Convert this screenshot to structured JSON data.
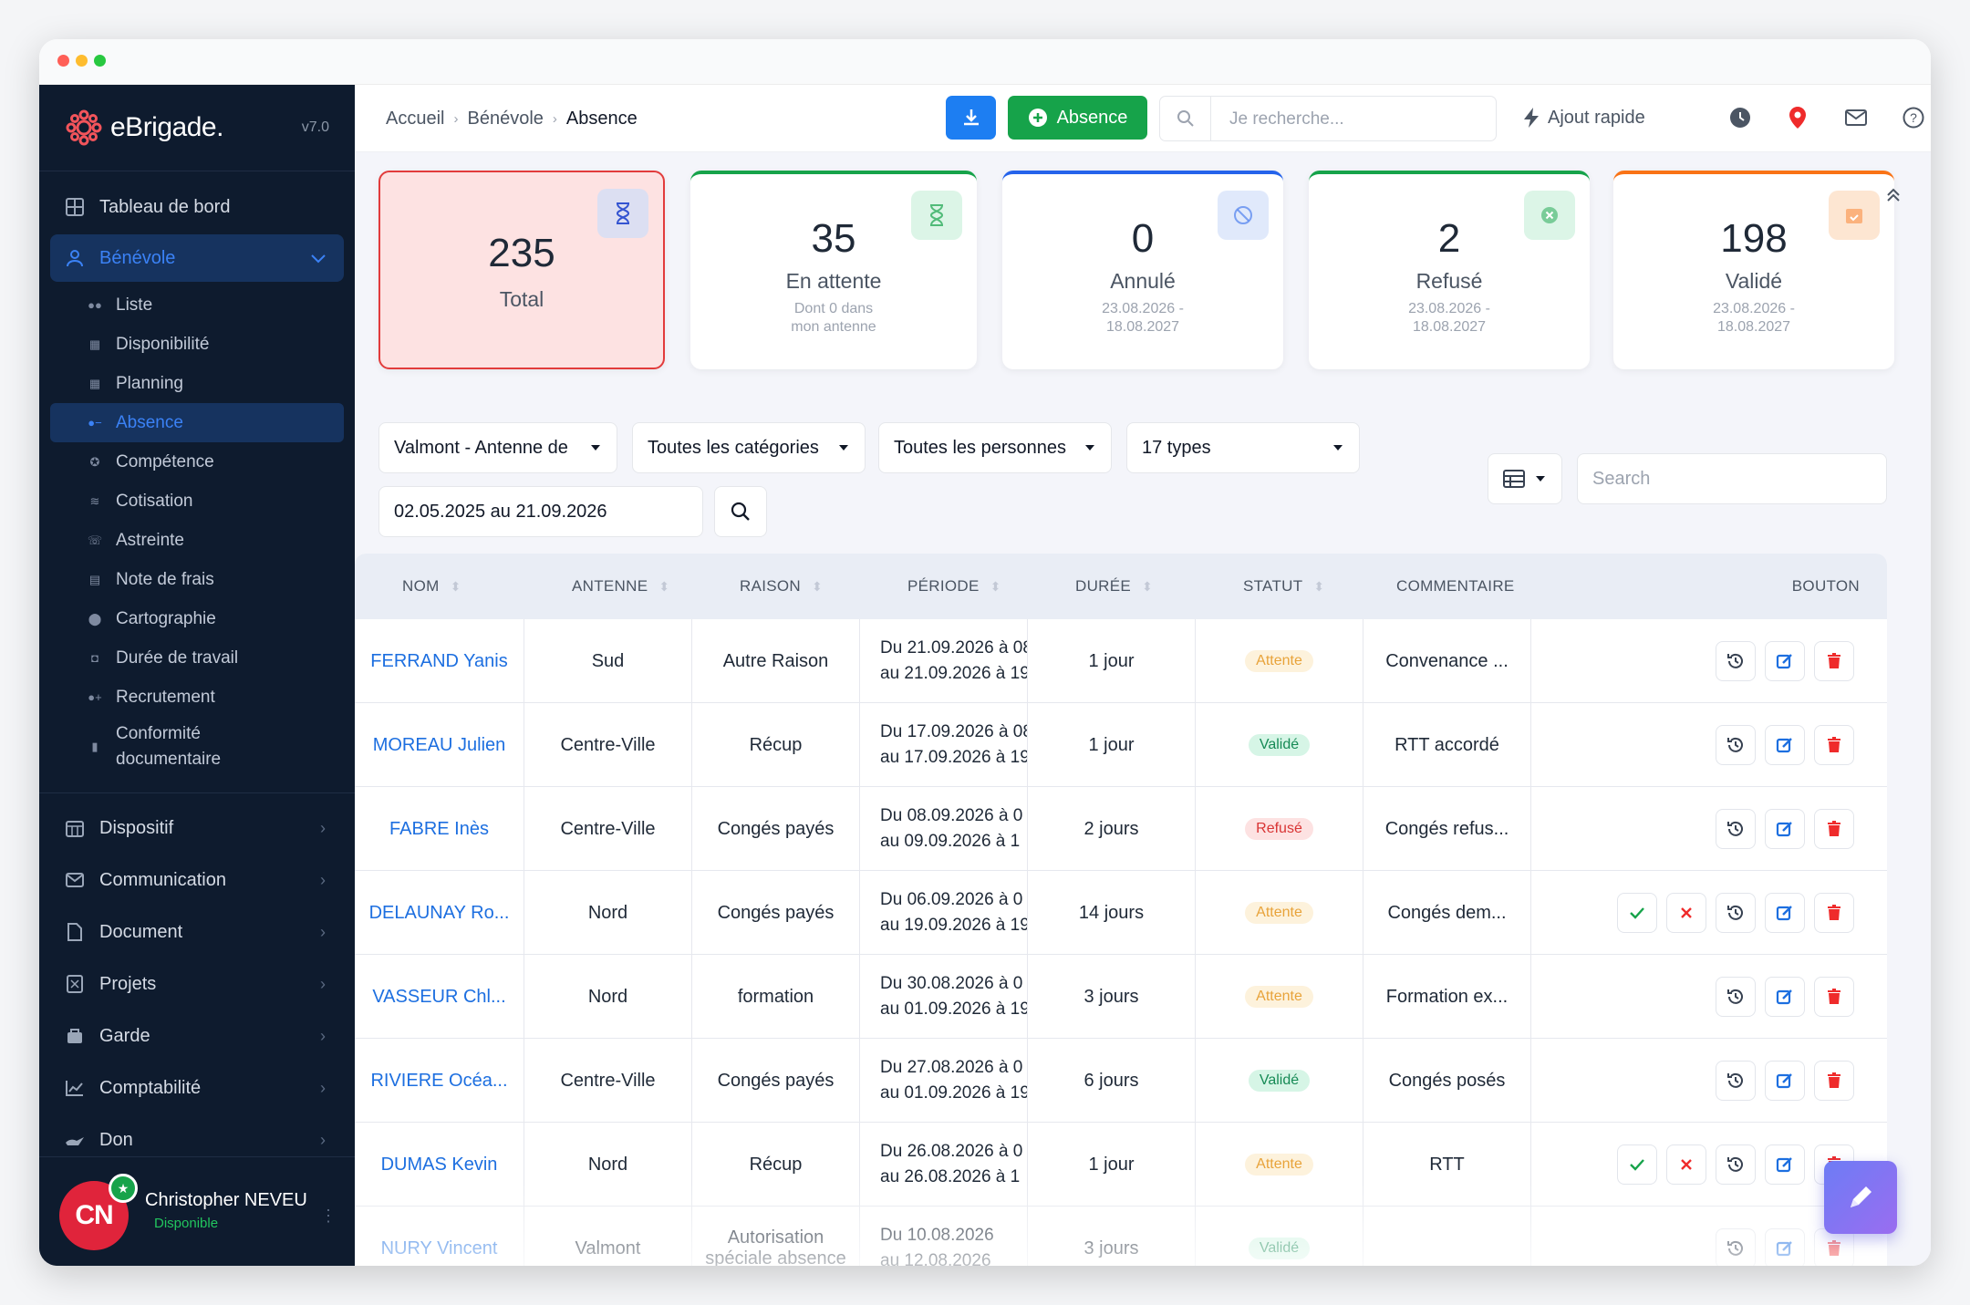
{
  "window": {
    "dots": [
      "#ff5f57",
      "#febc2e",
      "#28c840"
    ]
  },
  "brand": {
    "name": "eBrigade.",
    "version": "v7.0"
  },
  "sidebar": {
    "top": [
      {
        "label": "Tableau de bord",
        "icon": "dashboard-icon"
      }
    ],
    "section": {
      "label": "Bénévole",
      "icon": "user-icon"
    },
    "subitems": [
      {
        "label": "Liste",
        "icon": "users-icon"
      },
      {
        "label": "Disponibilité",
        "icon": "calendar-check-icon"
      },
      {
        "label": "Planning",
        "icon": "calendar-icon"
      },
      {
        "label": "Absence",
        "icon": "user-minus-icon",
        "active": true
      },
      {
        "label": "Compétence",
        "icon": "award-icon"
      },
      {
        "label": "Cotisation",
        "icon": "coins-icon"
      },
      {
        "label": "Astreinte",
        "icon": "phone-icon"
      },
      {
        "label": "Note de frais",
        "icon": "receipt-icon"
      },
      {
        "label": "Cartographie",
        "icon": "map-pin-icon"
      },
      {
        "label": "Durée de travail",
        "icon": "briefcase-clock-icon"
      },
      {
        "label": "Recrutement",
        "icon": "user-plus-icon"
      },
      {
        "label": "Conformité",
        "label2": "documentaire",
        "icon": "file-check-icon"
      }
    ],
    "items": [
      {
        "label": "Dispositif",
        "icon": "grid-calendar-icon"
      },
      {
        "label": "Communication",
        "icon": "envelope-icon"
      },
      {
        "label": "Document",
        "icon": "file-icon"
      },
      {
        "label": "Projets",
        "icon": "kanban-icon"
      },
      {
        "label": "Garde",
        "icon": "shield-icon"
      },
      {
        "label": "Comptabilité",
        "icon": "chart-line-icon"
      },
      {
        "label": "Don",
        "icon": "hand-heart-icon"
      }
    ],
    "user": {
      "initials": "CN",
      "name": "Christopher NEVEU",
      "status": "Disponible"
    }
  },
  "topbar": {
    "breadcrumb": [
      "Accueil",
      "Bénévole",
      "Absence"
    ],
    "add_button": "Absence",
    "search_placeholder": "Je recherche...",
    "quick_add": "Ajout rapide"
  },
  "cards": [
    {
      "num": "235",
      "label": "Total",
      "sub": "",
      "color": "#e23b3b",
      "icon": "hourglass-icon"
    },
    {
      "num": "35",
      "label": "En attente",
      "sub": "Dont 0 dans",
      "sub2": "mon antenne",
      "color": "#16a34a",
      "icon": "hourglass-icon"
    },
    {
      "num": "0",
      "label": "Annulé",
      "sub": "23.08.2026 -",
      "sub2": "18.08.2027",
      "color": "#2563eb",
      "icon": "ban-icon"
    },
    {
      "num": "2",
      "label": "Refusé",
      "sub": "23.08.2026 -",
      "sub2": "18.08.2027",
      "color": "#16a34a",
      "icon": "x-circle-icon"
    },
    {
      "num": "198",
      "label": "Validé",
      "sub": "23.08.2026 -",
      "sub2": "18.08.2027",
      "color": "#f97316",
      "icon": "calendar-check-icon"
    }
  ],
  "filters": {
    "antenne": "Valmont - Antenne de",
    "categories": "Toutes les catégories",
    "personnes": "Toutes les personnes",
    "types": "17 types",
    "dates": "02.05.2025 au 21.09.2026",
    "table_search_placeholder": "Search"
  },
  "table": {
    "columns": [
      "NOM",
      "ANTENNE",
      "RAISON",
      "PÉRIODE",
      "DURÉE",
      "STATUT",
      "COMMENTAIRE",
      "BOUTON"
    ],
    "rows": [
      {
        "nom": "FERRAND Yanis",
        "antenne": "Sud",
        "raison": "Autre Raison",
        "p1": "Du 21.09.2026 à 08",
        "p2": "au 21.09.2026 à 19",
        "duree": "1 jour",
        "statut": "Attente",
        "commentaire": "Convenance ...",
        "approve": false
      },
      {
        "nom": "MOREAU Julien",
        "antenne": "Centre-Ville",
        "raison": "Récup",
        "p1": "Du 17.09.2026 à 08",
        "p2": "au 17.09.2026 à 19",
        "duree": "1 jour",
        "statut": "Validé",
        "commentaire": "RTT accordé",
        "approve": false
      },
      {
        "nom": "FABRE Inès",
        "antenne": "Centre-Ville",
        "raison": "Congés payés",
        "p1": "Du 08.09.2026 à 0",
        "p2": "au 09.09.2026 à 1",
        "duree": "2 jours",
        "statut": "Refusé",
        "commentaire": "Congés refus...",
        "approve": false
      },
      {
        "nom": "DELAUNAY Ro...",
        "antenne": "Nord",
        "raison": "Congés payés",
        "p1": "Du 06.09.2026 à 0",
        "p2": "au 19.09.2026 à 19",
        "duree": "14 jours",
        "statut": "Attente",
        "commentaire": "Congés dem...",
        "approve": true
      },
      {
        "nom": "VASSEUR Chl...",
        "antenne": "Nord",
        "raison": "formation",
        "p1": "Du 30.08.2026 à 0",
        "p2": "au 01.09.2026 à 19",
        "duree": "3 jours",
        "statut": "Attente",
        "commentaire": "Formation ex...",
        "approve": false
      },
      {
        "nom": "RIVIERE Océa...",
        "antenne": "Centre-Ville",
        "raison": "Congés payés",
        "p1": "Du 27.08.2026 à 0",
        "p2": "au 01.09.2026 à 19",
        "duree": "6 jours",
        "statut": "Validé",
        "commentaire": "Congés posés",
        "approve": false
      },
      {
        "nom": "DUMAS Kevin",
        "antenne": "Nord",
        "raison": "Récup",
        "p1": "Du 26.08.2026 à 0",
        "p2": "au 26.08.2026 à 1",
        "duree": "1 jour",
        "statut": "Attente",
        "commentaire": "RTT",
        "approve": true
      },
      {
        "nom": "NURY Vincent",
        "antenne": "Valmont",
        "raison": "Autorisation spéciale absence",
        "p1": "Du 10.08.2026",
        "p2": "au 12.08.2026",
        "duree": "3 jours",
        "statut": "Validé",
        "commentaire": "",
        "approve": false
      }
    ]
  }
}
